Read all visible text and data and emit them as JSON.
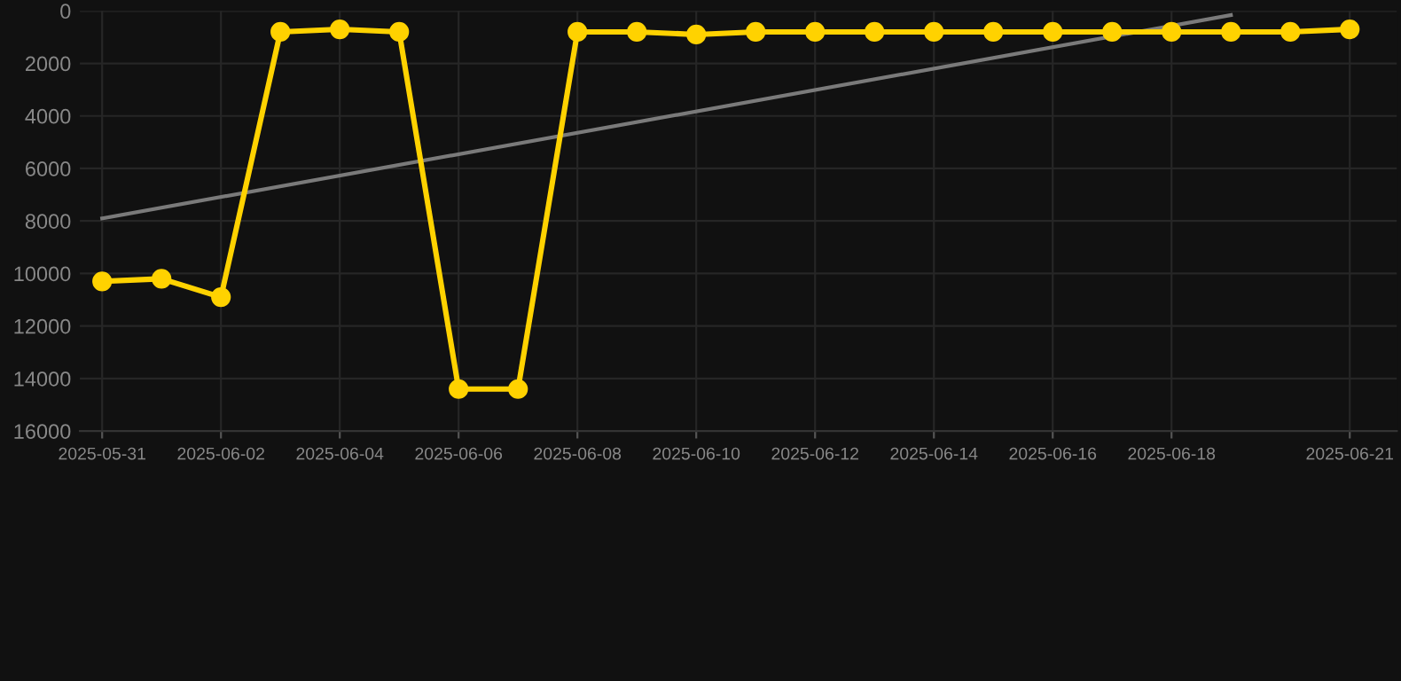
{
  "chart_data": {
    "type": "line",
    "x": [
      "2025-05-31",
      "2025-06-01",
      "2025-06-02",
      "2025-06-03",
      "2025-06-04",
      "2025-06-05",
      "2025-06-06",
      "2025-06-07",
      "2025-06-08",
      "2025-06-09",
      "2025-06-10",
      "2025-06-11",
      "2025-06-12",
      "2025-06-13",
      "2025-06-14",
      "2025-06-15",
      "2025-06-16",
      "2025-06-17",
      "2025-06-18",
      "2025-06-19",
      "2025-06-20",
      "2025-06-21"
    ],
    "series": [
      {
        "color": "#ffd200",
        "marker": "circle",
        "values": [
          10300,
          10200,
          10900,
          800,
          700,
          800,
          14400,
          14400,
          800,
          800,
          900,
          800,
          800,
          800,
          800,
          800,
          800,
          800,
          800,
          800,
          800,
          700
        ]
      },
      {
        "type": "line",
        "color": "#7a7a7a",
        "marker": "none",
        "x": [
          "2025-05-31",
          "2025-06-19"
        ],
        "values": [
          7900,
          160
        ]
      }
    ],
    "xlim": [
      "2025-05-30T15:00",
      "2025-06-21T19:00"
    ],
    "xticks": [
      "2025-05-31",
      "2025-06-02",
      "2025-06-04",
      "2025-06-06",
      "2025-06-08",
      "2025-06-10",
      "2025-06-12",
      "2025-06-14",
      "2025-06-16",
      "2025-06-18",
      "2025-06-21"
    ],
    "ylim": [
      16000,
      0
    ],
    "yticks": [
      0,
      2000,
      4000,
      6000,
      8000,
      10000,
      12000,
      14000,
      16000
    ],
    "grid": true
  }
}
